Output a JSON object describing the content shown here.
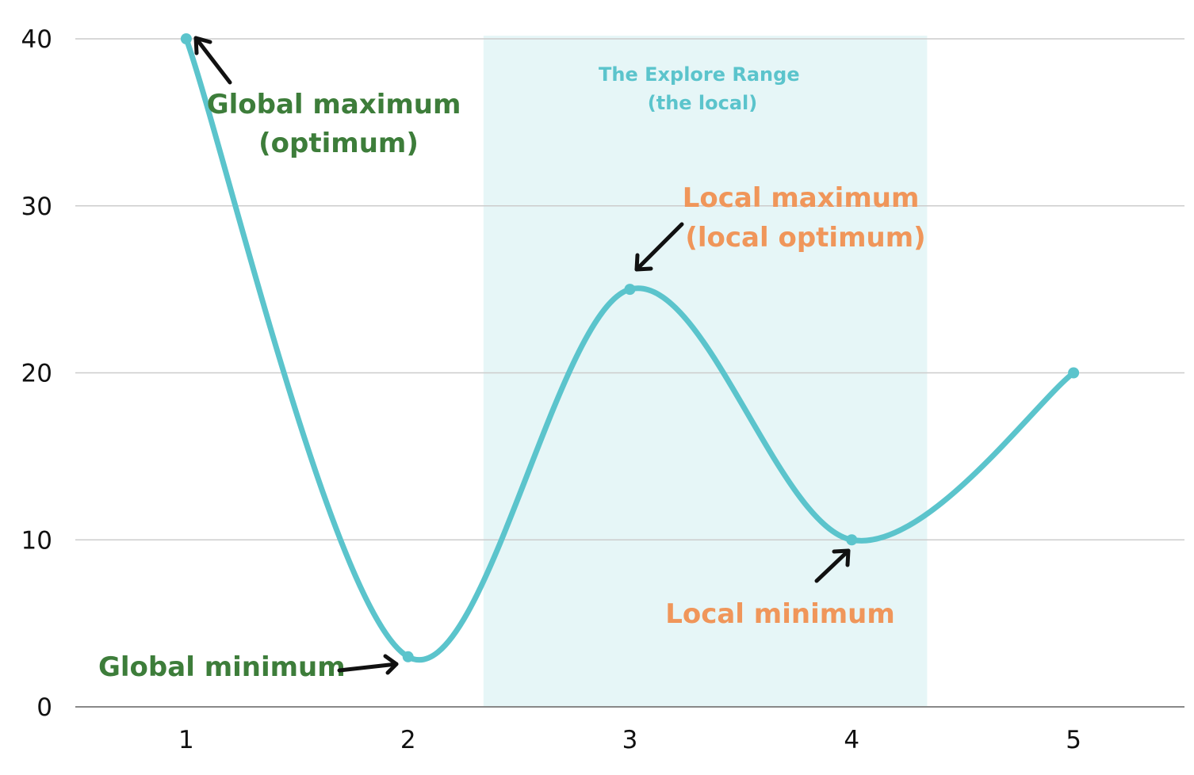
{
  "chart_data": {
    "type": "line",
    "x": [
      1,
      2,
      3,
      4,
      5
    ],
    "series": [
      {
        "values": [
          40,
          3,
          25,
          10,
          20
        ]
      }
    ],
    "xlim": [
      0.5,
      5.5
    ],
    "ylim": [
      0,
      40
    ],
    "x_ticks": [
      "1",
      "2",
      "3",
      "4",
      "5"
    ],
    "y_ticks": [
      "0",
      "10",
      "20",
      "30",
      "40"
    ],
    "grid": "horizontal",
    "smooth": true,
    "line_color": "#5bc4cc",
    "highlight_range": {
      "x": [
        2.34,
        4.34
      ],
      "color": "#e6f6f7"
    },
    "annotations": {
      "global_max": {
        "lines": [
          "Global maximum",
          "(optimum)"
        ],
        "color": "#3d7d3a"
      },
      "global_min": {
        "lines": [
          "Global minimum"
        ],
        "color": "#3d7d3a"
      },
      "local_max": {
        "lines": [
          "Local maximum",
          "(local optimum)"
        ],
        "color": "#f0965a"
      },
      "local_min": {
        "lines": [
          "Local minimum"
        ],
        "color": "#f0965a"
      },
      "explore_range": {
        "lines": [
          "The Explore Range",
          "(the local)"
        ],
        "color": "#5bc4cc"
      }
    }
  }
}
